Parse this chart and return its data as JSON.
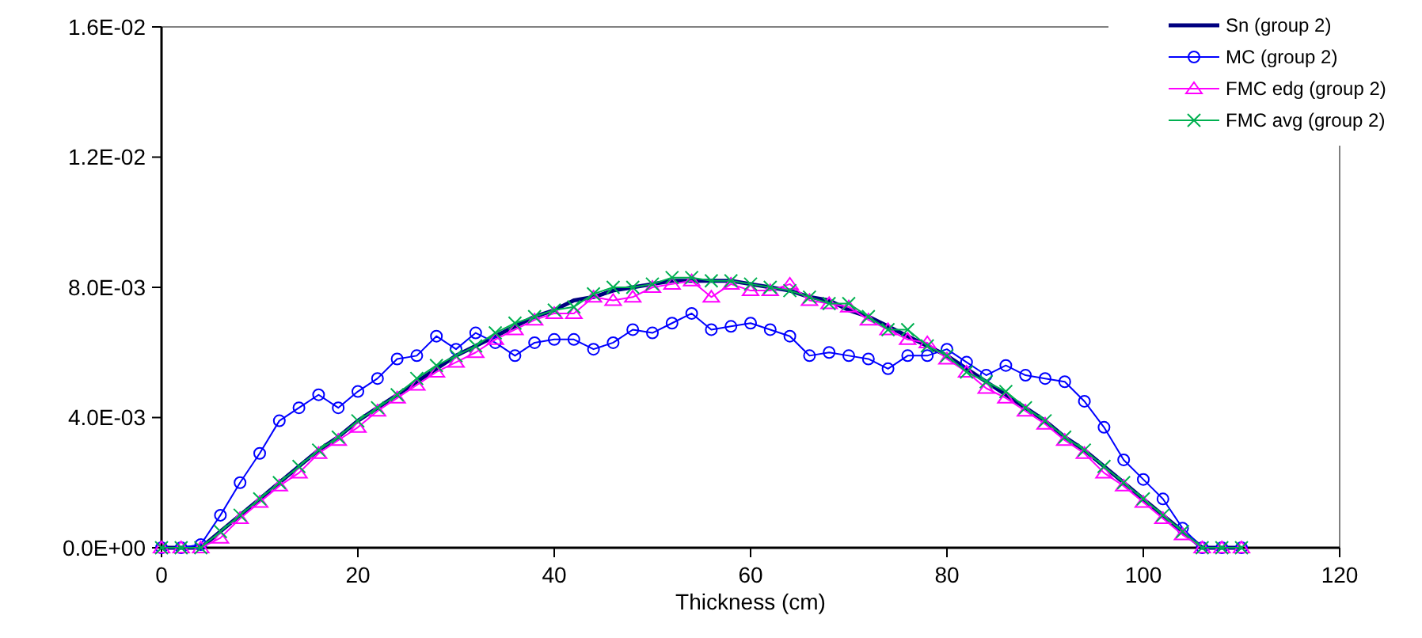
{
  "chart_data": {
    "type": "line",
    "xlabel": "Thickness (cm)",
    "x": [
      0,
      2,
      4,
      6,
      8,
      10,
      12,
      14,
      16,
      18,
      20,
      22,
      24,
      26,
      28,
      30,
      32,
      34,
      36,
      38,
      40,
      42,
      44,
      46,
      48,
      50,
      52,
      54,
      56,
      58,
      60,
      62,
      64,
      66,
      68,
      70,
      72,
      74,
      76,
      78,
      80,
      82,
      84,
      86,
      88,
      90,
      92,
      94,
      96,
      98,
      100,
      102,
      104,
      106,
      108,
      110
    ],
    "xlim": [
      0,
      120
    ],
    "xticks": [
      0,
      20,
      40,
      60,
      80,
      100,
      120
    ],
    "ylim": [
      0,
      0.016
    ],
    "yticks": [
      {
        "value": 0,
        "label": "0.0E+00"
      },
      {
        "value": 0.004,
        "label": "4.0E-03"
      },
      {
        "value": 0.008,
        "label": "8.0E-03"
      },
      {
        "value": 0.012,
        "label": "1.2E-02"
      },
      {
        "value": 0.016,
        "label": "1.6E-02"
      }
    ],
    "legend": "top right",
    "line_style": "solid",
    "series": [
      {
        "name": "Sn (group 2)",
        "color": "#000080",
        "marker": "none",
        "values": [
          0,
          0,
          0,
          0.0005,
          0.001,
          0.0015,
          0.002,
          0.0025,
          0.003,
          0.0034,
          0.0039,
          0.0043,
          0.0047,
          0.0051,
          0.0055,
          0.0059,
          0.0062,
          0.0065,
          0.0068,
          0.0071,
          0.0073,
          0.0076,
          0.0077,
          0.0079,
          0.008,
          0.0081,
          0.0082,
          0.0082,
          0.0082,
          0.0082,
          0.0081,
          0.008,
          0.0079,
          0.0077,
          0.0076,
          0.0073,
          0.0071,
          0.0068,
          0.0065,
          0.0062,
          0.0059,
          0.0055,
          0.0051,
          0.0047,
          0.0043,
          0.0039,
          0.0034,
          0.003,
          0.0025,
          0.002,
          0.0015,
          0.001,
          0.0005,
          0,
          0,
          0
        ]
      },
      {
        "name": "MC (group 2)",
        "color": "#0000ff",
        "marker": "circle",
        "values": [
          0,
          0,
          0.0001,
          0.001,
          0.002,
          0.0029,
          0.0039,
          0.0043,
          0.0047,
          0.0043,
          0.0048,
          0.0052,
          0.0058,
          0.0059,
          0.0065,
          0.0061,
          0.0066,
          0.0063,
          0.0059,
          0.0063,
          0.0064,
          0.0064,
          0.0061,
          0.0063,
          0.0067,
          0.0066,
          0.0069,
          0.0072,
          0.0067,
          0.0068,
          0.0069,
          0.0067,
          0.0065,
          0.0059,
          0.006,
          0.0059,
          0.0058,
          0.0055,
          0.0059,
          0.0059,
          0.0061,
          0.0057,
          0.0053,
          0.0056,
          0.0053,
          0.0052,
          0.0051,
          0.0045,
          0.0037,
          0.0027,
          0.0021,
          0.0015,
          0.0006,
          0,
          0,
          0
        ]
      },
      {
        "name": "FMC edg (group 2)",
        "color": "#ff00ff",
        "marker": "triangle",
        "values": [
          0,
          0,
          0,
          0.0003,
          0.0009,
          0.0014,
          0.0019,
          0.0023,
          0.0029,
          0.0033,
          0.0037,
          0.0042,
          0.0046,
          0.005,
          0.0054,
          0.0057,
          0.006,
          0.0064,
          0.0067,
          0.007,
          0.0072,
          0.0072,
          0.0077,
          0.0076,
          0.0077,
          0.008,
          0.0081,
          0.0082,
          0.0077,
          0.0081,
          0.0079,
          0.0079,
          0.0081,
          0.0076,
          0.0075,
          0.0074,
          0.007,
          0.0067,
          0.0064,
          0.0063,
          0.0058,
          0.0054,
          0.0049,
          0.0046,
          0.0042,
          0.0038,
          0.0033,
          0.0029,
          0.0023,
          0.0019,
          0.0014,
          0.0009,
          0.0004,
          0,
          0,
          0
        ]
      },
      {
        "name": "FMC avg (group 2)",
        "color": "#00b050",
        "marker": "cross",
        "values": [
          0,
          0,
          0,
          0.0005,
          0.001,
          0.0015,
          0.002,
          0.0025,
          0.003,
          0.0034,
          0.0039,
          0.0043,
          0.0047,
          0.0052,
          0.0056,
          0.0059,
          0.0062,
          0.0066,
          0.0069,
          0.0071,
          0.0073,
          0.0074,
          0.0078,
          0.008,
          0.008,
          0.0081,
          0.0083,
          0.0083,
          0.0082,
          0.0082,
          0.0081,
          0.008,
          0.0079,
          0.0077,
          0.0075,
          0.0075,
          0.0071,
          0.0067,
          0.0067,
          0.0062,
          0.0059,
          0.0054,
          0.0051,
          0.0048,
          0.0043,
          0.0039,
          0.0034,
          0.003,
          0.0025,
          0.002,
          0.0015,
          0.001,
          0.0005,
          0,
          0,
          0
        ]
      }
    ]
  }
}
